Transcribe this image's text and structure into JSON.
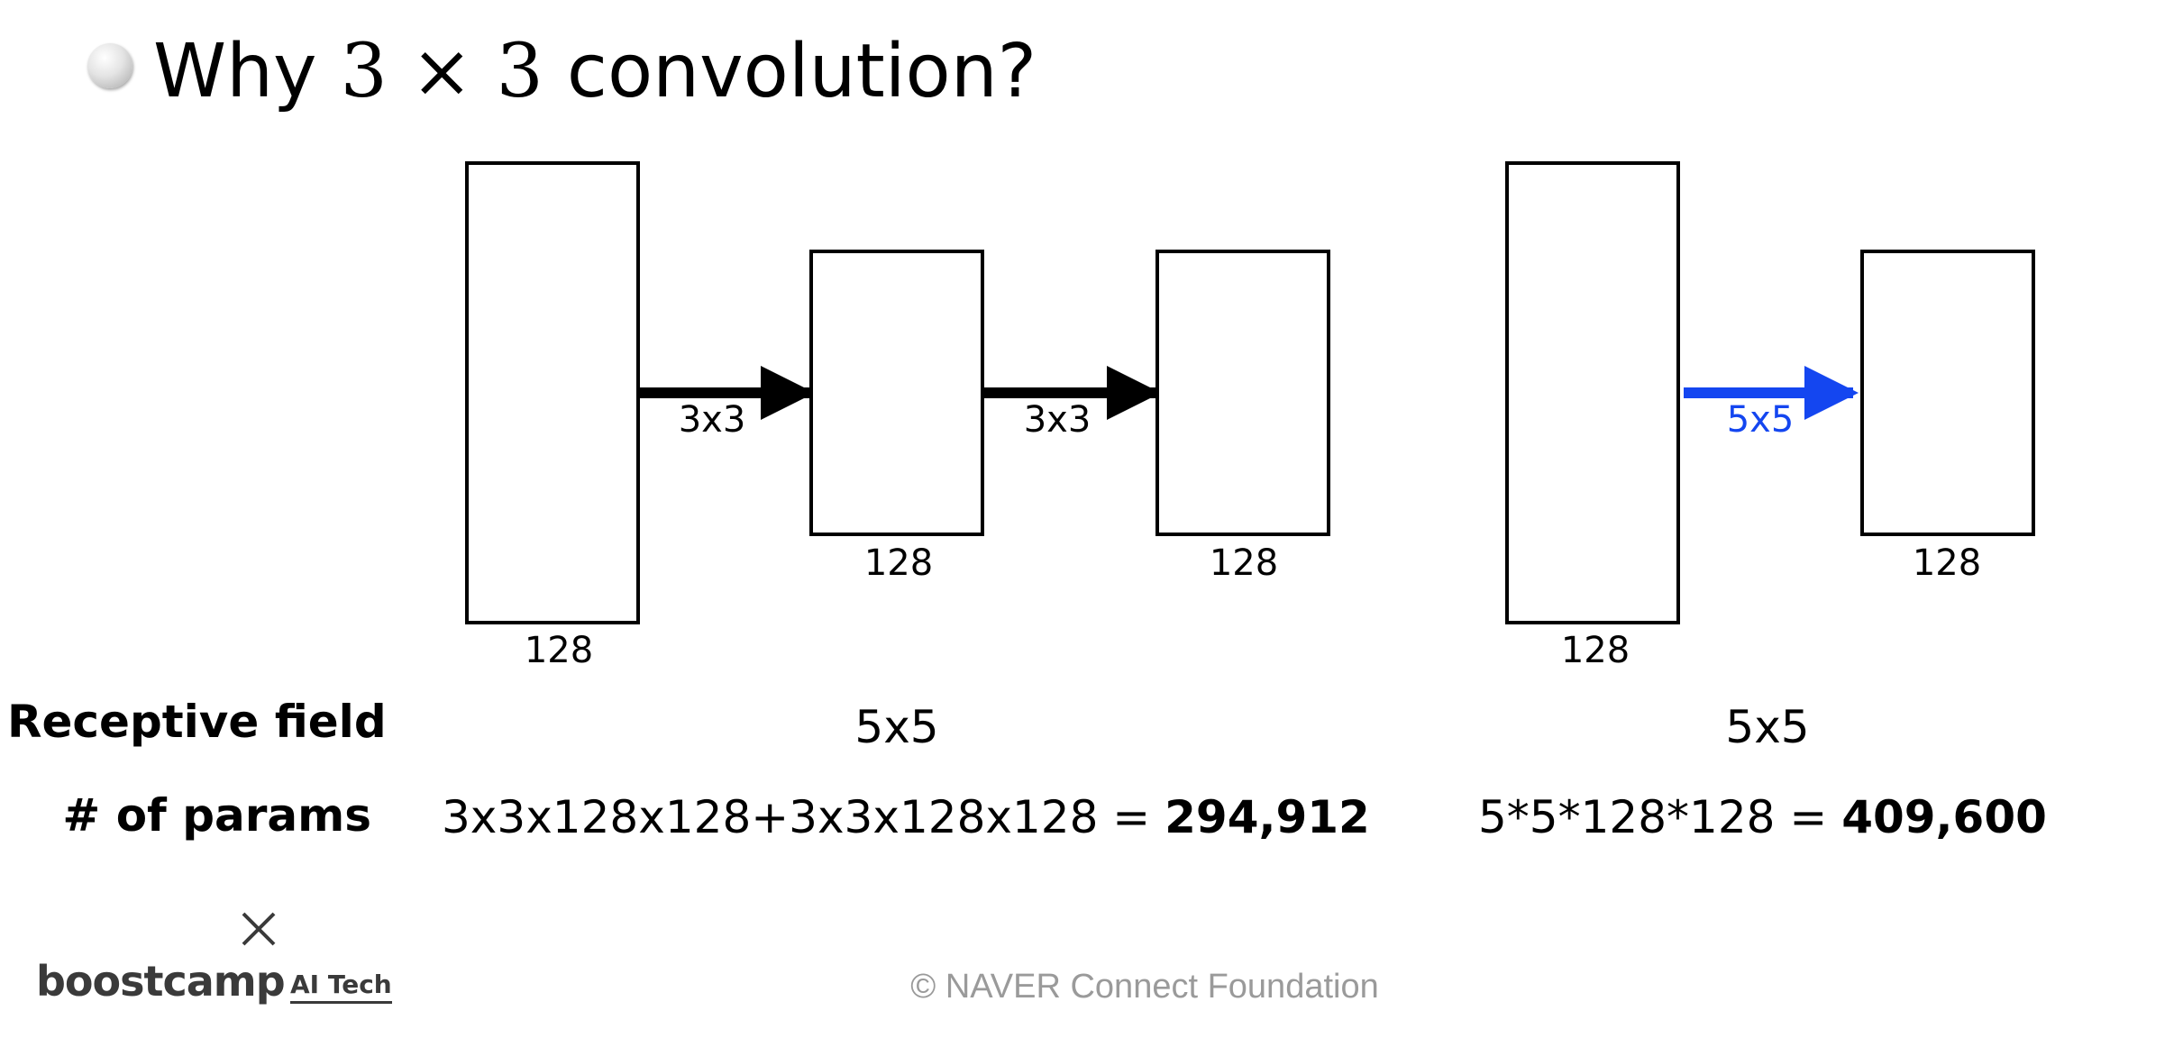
{
  "title": {
    "prefix": "Why",
    "math": "3 × 3",
    "suffix": "convolution?"
  },
  "diagram": {
    "left": {
      "boxes": [
        {
          "label": "128"
        },
        {
          "label": "128"
        },
        {
          "label": "128"
        }
      ],
      "arrows": [
        {
          "label": "3x3",
          "color": "#000000"
        },
        {
          "label": "3x3",
          "color": "#000000"
        }
      ]
    },
    "right": {
      "boxes": [
        {
          "label": "128"
        },
        {
          "label": "128"
        }
      ],
      "arrows": [
        {
          "label": "5x5",
          "color": "#1446f0"
        }
      ]
    }
  },
  "rows": {
    "receptive_field": {
      "label": "Receptive field",
      "left": "5x5",
      "right": "5x5"
    },
    "params": {
      "label": "# of params",
      "left_expr": "3x3x128x128+3x3x128x128 = ",
      "left_total": "294,912",
      "right_expr": "5*5*128*128 = ",
      "right_total": "409,600"
    }
  },
  "footer": {
    "logo_mark": "×",
    "logo_main": "boostcamp",
    "logo_sub": "AI Tech",
    "copyright": "©  NAVER Connect Foundation"
  },
  "colors": {
    "accent_blue": "#1446f0",
    "footer_gray": "#9a9a9a"
  },
  "icons": {
    "title_bullet": "gray-sphere-bullet-icon",
    "logo_mark": "x-icon"
  }
}
